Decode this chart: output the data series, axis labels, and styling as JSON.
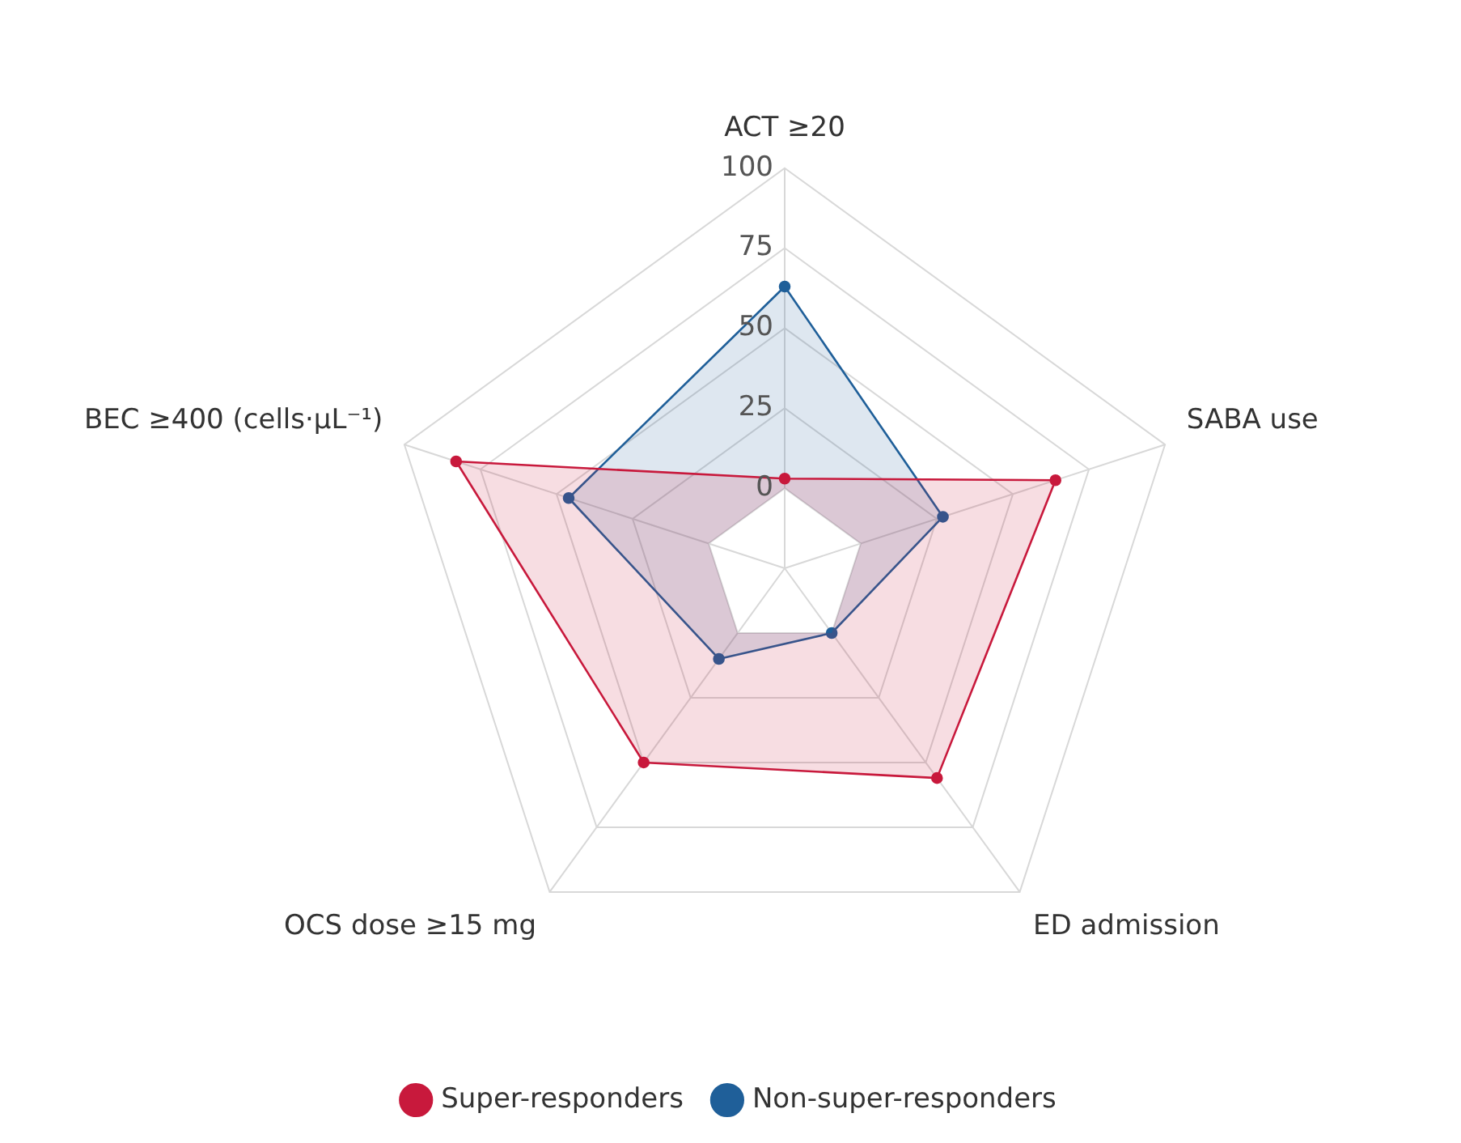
{
  "chart_data": {
    "type": "radar",
    "categories": [
      "ACT ≥20",
      "SABA use",
      "ED admission",
      "OCS dose ≥15 mg",
      "BEC ≥400 (cells·µL⁻¹)"
    ],
    "ylim": [
      -25,
      100
    ],
    "yticks": [
      0,
      25,
      50,
      75,
      100
    ],
    "grid": true,
    "legend": "bottom",
    "marker": "circle",
    "series": [
      {
        "name": "Super-responders",
        "color": "#c8193c",
        "values": [
          3,
          64,
          56,
          50,
          83
        ]
      },
      {
        "name": "Non-super-responders",
        "color": "#1f5f99",
        "values": [
          63,
          27,
          0,
          10,
          46
        ]
      }
    ]
  }
}
